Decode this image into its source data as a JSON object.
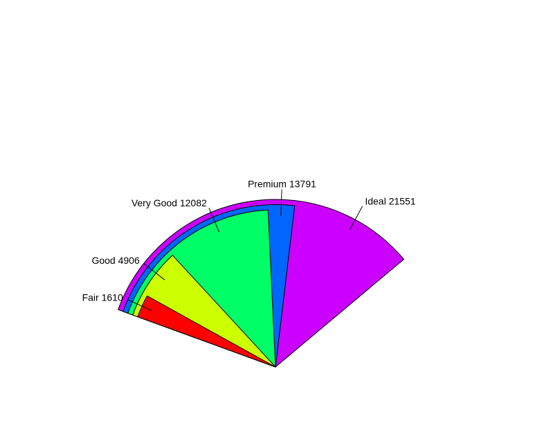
{
  "chart_data": {
    "type": "pie",
    "variant": "fan",
    "title": "",
    "slices": [
      {
        "label": "Fair",
        "value": 1610,
        "text": "Fair 1610",
        "color": "#FF0000"
      },
      {
        "label": "Good",
        "value": 4906,
        "text": "Good 4906",
        "color": "#CCFF00"
      },
      {
        "label": "Very Good",
        "value": 12082,
        "text": "Very Good 12082",
        "color": "#00FF66"
      },
      {
        "label": "Premium",
        "value": 13791,
        "text": "Premium 13791",
        "color": "#0066FF"
      },
      {
        "label": "Ideal",
        "value": 21551,
        "text": "Ideal 21551",
        "color": "#CC00FF"
      }
    ],
    "legend": "none",
    "grid": false
  }
}
